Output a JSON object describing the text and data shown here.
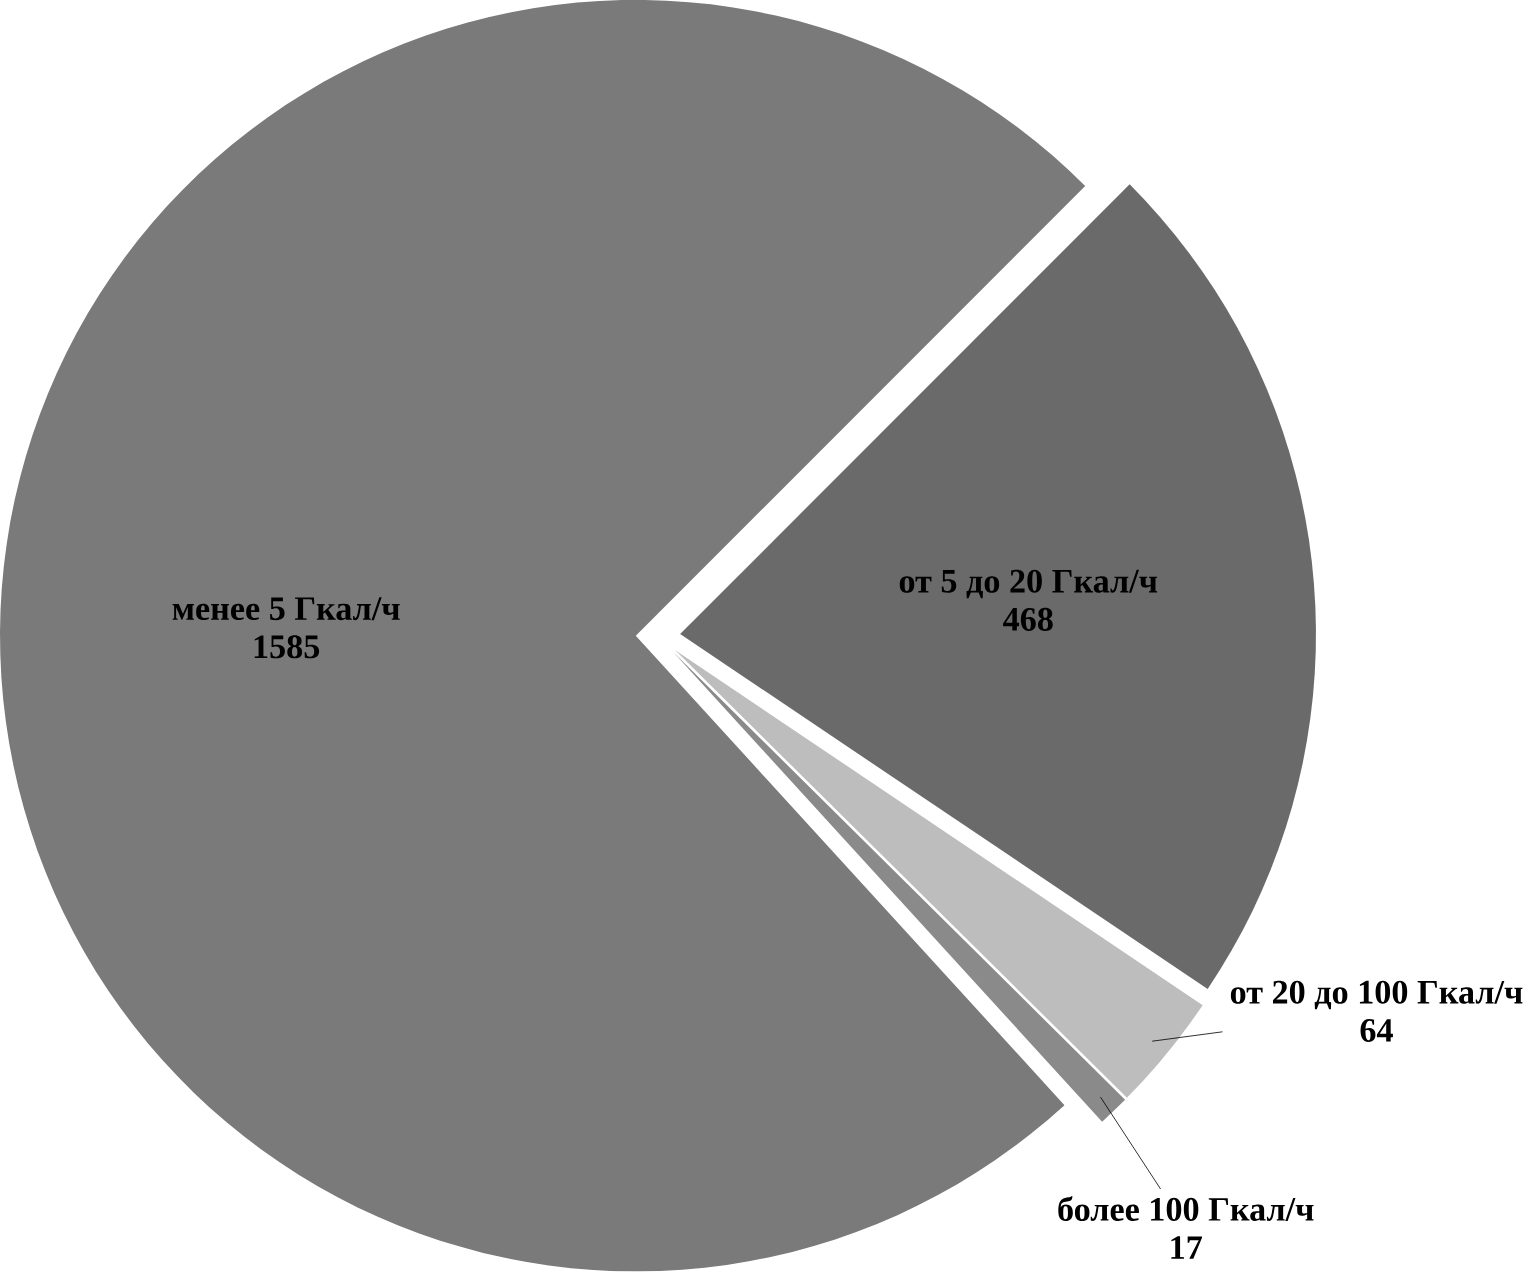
{
  "chart_data": {
    "type": "pie",
    "categories": [
      "менее 5 Гкал/ч",
      "от 5 до 20 Гкал/ч",
      "от 20 до 100 Гкал/ч",
      "более 100 Гкал/ч"
    ],
    "values": [
      1585,
      468,
      64,
      17
    ],
    "colors": [
      "#7a7a7a",
      "#6a6a6a",
      "#bdbdbd",
      "#8a8a8a"
    ],
    "data_labels": true
  }
}
